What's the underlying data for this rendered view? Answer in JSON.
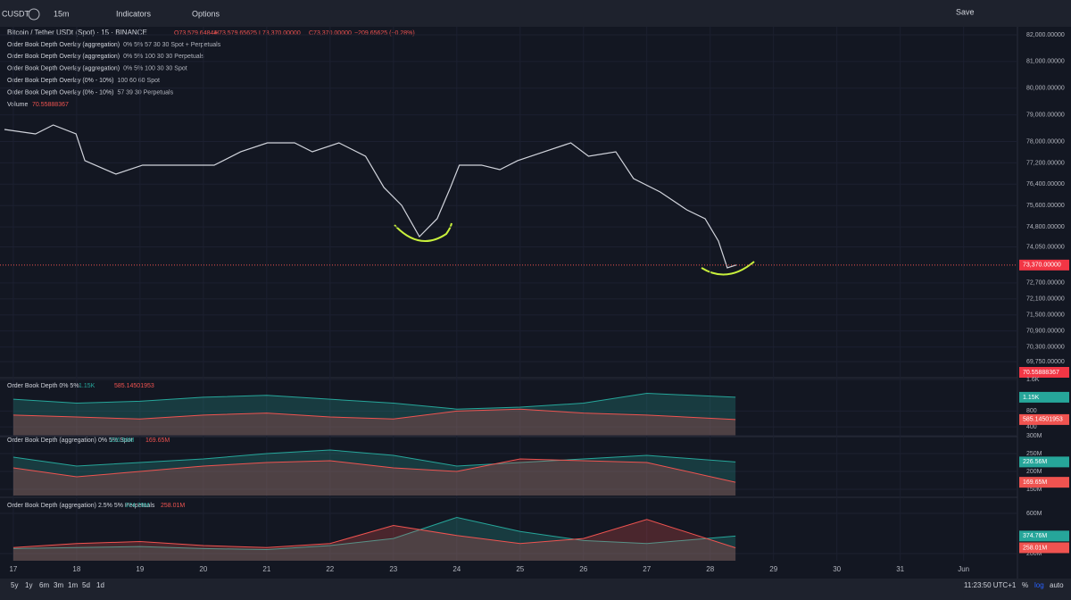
{
  "toolbar": {
    "symbol": "CUSDT",
    "interval": "15m",
    "indicators": "Indicators",
    "options": "Options",
    "save": "Save"
  },
  "legend": {
    "symbol": "Bitcoin / Tether USDt (Spot) · 15 · BINANCE",
    "open": "O73,579.64844",
    "high": "H73,579.65625",
    "low": "L73,370.00000",
    "close": "C73,370.00000",
    "change": "−209.65625 (−0.28%)",
    "overlays": [
      {
        "name": "Order Book Depth Overlay (aggregation)",
        "params": "0% 5% 57 30 30 Spot + Perpetuals"
      },
      {
        "name": "Order Book Depth Overlay (aggregation)",
        "params": "0% 5% 100 30 30 Perpetuals"
      },
      {
        "name": "Order Book Depth Overlay (aggregation)",
        "params": "0% 5% 100 30 30 Spot"
      },
      {
        "name": "Order Book Depth Overlay (0% - 10%)",
        "params": "100 60 60 Spot"
      },
      {
        "name": "Order Book Depth Overlay (0% - 10%)",
        "params": "57 39 30 Perpetuals"
      }
    ],
    "volume_name": "Volume",
    "volume_value": "70.55888367"
  },
  "chart_data": [
    {
      "type": "line",
      "color": "#d1d4dc",
      "x": [
        16.86,
        17.35,
        17.63,
        17.99,
        18.13,
        18.62,
        19.04,
        19.61,
        20.17,
        20.59,
        21.01,
        21.44,
        21.72,
        22.14,
        22.56,
        22.85,
        23.13,
        23.41,
        23.69,
        23.9,
        24.04,
        24.39,
        24.68,
        24.96,
        25.38,
        25.8,
        26.08,
        26.51,
        26.79,
        27.21,
        27.63,
        27.92,
        28.13,
        28.27,
        28.41
      ],
      "values": [
        78452,
        78285,
        78620,
        78285,
        77281,
        76779,
        77114,
        77114,
        77114,
        77616,
        77950,
        77950,
        77616,
        77950,
        77448,
        76277,
        75608,
        74436,
        75106,
        76277,
        77114,
        77114,
        76946,
        77281,
        77616,
        77950,
        77448,
        77616,
        76612,
        76110,
        75440,
        75106,
        74269,
        73265,
        73370
      ],
      "value_labels": [
        null,
        null,
        null,
        null,
        null,
        null,
        null,
        null,
        null,
        null,
        null,
        null,
        null,
        null,
        null,
        null,
        null,
        null,
        null,
        null,
        null,
        null,
        null,
        null,
        null,
        null,
        null,
        null,
        null,
        null,
        null,
        null,
        null,
        null,
        "73,370.00000"
      ],
      "volume_label": "70.55888367",
      "xlim": [
        16.79,
        32.85
      ],
      "ylim": [
        69181,
        82301
      ],
      "xticks": [
        17,
        18,
        19,
        20,
        21,
        22,
        23,
        24,
        25,
        26,
        27,
        28,
        29,
        30,
        31,
        {
          "value": 32,
          "label": "Jun"
        }
      ],
      "yticks": [
        {
          "value": 82000,
          "label": "82,000.00000"
        },
        {
          "value": 81000,
          "label": "81,000.00000"
        },
        {
          "value": 80000,
          "label": "80,000.00000"
        },
        {
          "value": 79000,
          "label": "79,000.00000"
        },
        {
          "value": 78000,
          "label": "78,000.00000"
        },
        {
          "value": 77200,
          "label": "77,200.00000"
        },
        {
          "value": 76400,
          "label": "76,400.00000"
        },
        {
          "value": 75600,
          "label": "75,600.00000"
        },
        {
          "value": 74800,
          "label": "74,800.00000"
        },
        {
          "value": 74050,
          "label": "74,050.00000"
        },
        {
          "value": 72700,
          "label": "72,700.00000"
        },
        {
          "value": 72100,
          "label": "72,100.00000"
        },
        {
          "value": 71500,
          "label": "71,500.00000"
        },
        {
          "value": 70900,
          "label": "70,900.00000"
        },
        {
          "value": 70300,
          "label": "70,300.00000"
        },
        {
          "value": 69750,
          "label": "69,750.00000"
        }
      ]
    },
    {
      "type": "area",
      "title": "Order Book Depth 0% 5%",
      "x": [
        17,
        18,
        19,
        20,
        21,
        22,
        23,
        24,
        25,
        26,
        27,
        28.4
      ],
      "xlim": [
        16.79,
        32.85
      ],
      "ylim": [
        176,
        1623
      ],
      "yticks": [
        {
          "value": 1600,
          "label": "1.6K"
        },
        800,
        400
      ],
      "series": [
        {
          "color": "#26a69a",
          "values": [
            1100,
            1000,
            1050,
            1150,
            1200,
            1100,
            1000,
            850,
            900,
            1000,
            1250,
            1150
          ],
          "value_label": "1.15K"
        },
        {
          "color": "#ef5350",
          "values": [
            700,
            650,
            600,
            700,
            750,
            650,
            600,
            800,
            850,
            750,
            700,
            585.14501953
          ],
          "value_label": "585.14501953"
        }
      ]
    },
    {
      "type": "area",
      "title": "Order Book Depth (aggregation) 0% 5% Spot",
      "x": [
        17,
        18,
        19,
        20,
        21,
        22,
        23,
        24,
        25,
        26,
        27,
        28.4
      ],
      "xlim": [
        16.79,
        32.85
      ],
      "ylim": [
        132.5,
        307.5
      ],
      "yticks": [
        {
          "value": 300,
          "label": "300M"
        },
        {
          "value": 250,
          "label": "250M"
        },
        {
          "value": 200,
          "label": "200M"
        },
        {
          "value": 150,
          "label": "150M"
        }
      ],
      "series": [
        {
          "color": "#26a69a",
          "values": [
            240,
            215,
            225,
            235,
            250,
            260,
            245,
            215,
            225,
            235,
            245,
            226.56
          ],
          "value_label": "226.56M"
        },
        {
          "color": "#ef5350",
          "values": [
            210,
            185,
            200,
            215,
            225,
            230,
            210,
            200,
            235,
            230,
            225,
            169.65
          ],
          "value_label": "169.65M"
        }
      ]
    },
    {
      "type": "area",
      "title": "Order Book Depth (aggregation) 2.5% 5% Perpetuals",
      "x": [
        17,
        18,
        19,
        20,
        21,
        22,
        23,
        24,
        25,
        26,
        27,
        28.4
      ],
      "xlim": [
        16.79,
        32.85
      ],
      "ylim": [
        129,
        751
      ],
      "yticks": [
        {
          "value": 600,
          "label": "600M"
        },
        {
          "value": 200,
          "label": "200M"
        }
      ],
      "series": [
        {
          "color": "#26a69a",
          "values": [
            250,
            260,
            270,
            250,
            240,
            280,
            350,
            560,
            420,
            330,
            300,
            374.76
          ],
          "value_label": "374.76M"
        },
        {
          "color": "#ef5350",
          "values": [
            260,
            300,
            320,
            280,
            260,
            300,
            480,
            380,
            300,
            350,
            540,
            258.01
          ],
          "value_label": "258.01M"
        }
      ]
    }
  ],
  "footer": {
    "ranges": [
      "5y",
      "1y",
      "6m",
      "3m",
      "1m",
      "5d",
      "1d"
    ],
    "time": "11:23:50 UTC+1",
    "percent": "%",
    "log": "log",
    "auto": "auto"
  }
}
